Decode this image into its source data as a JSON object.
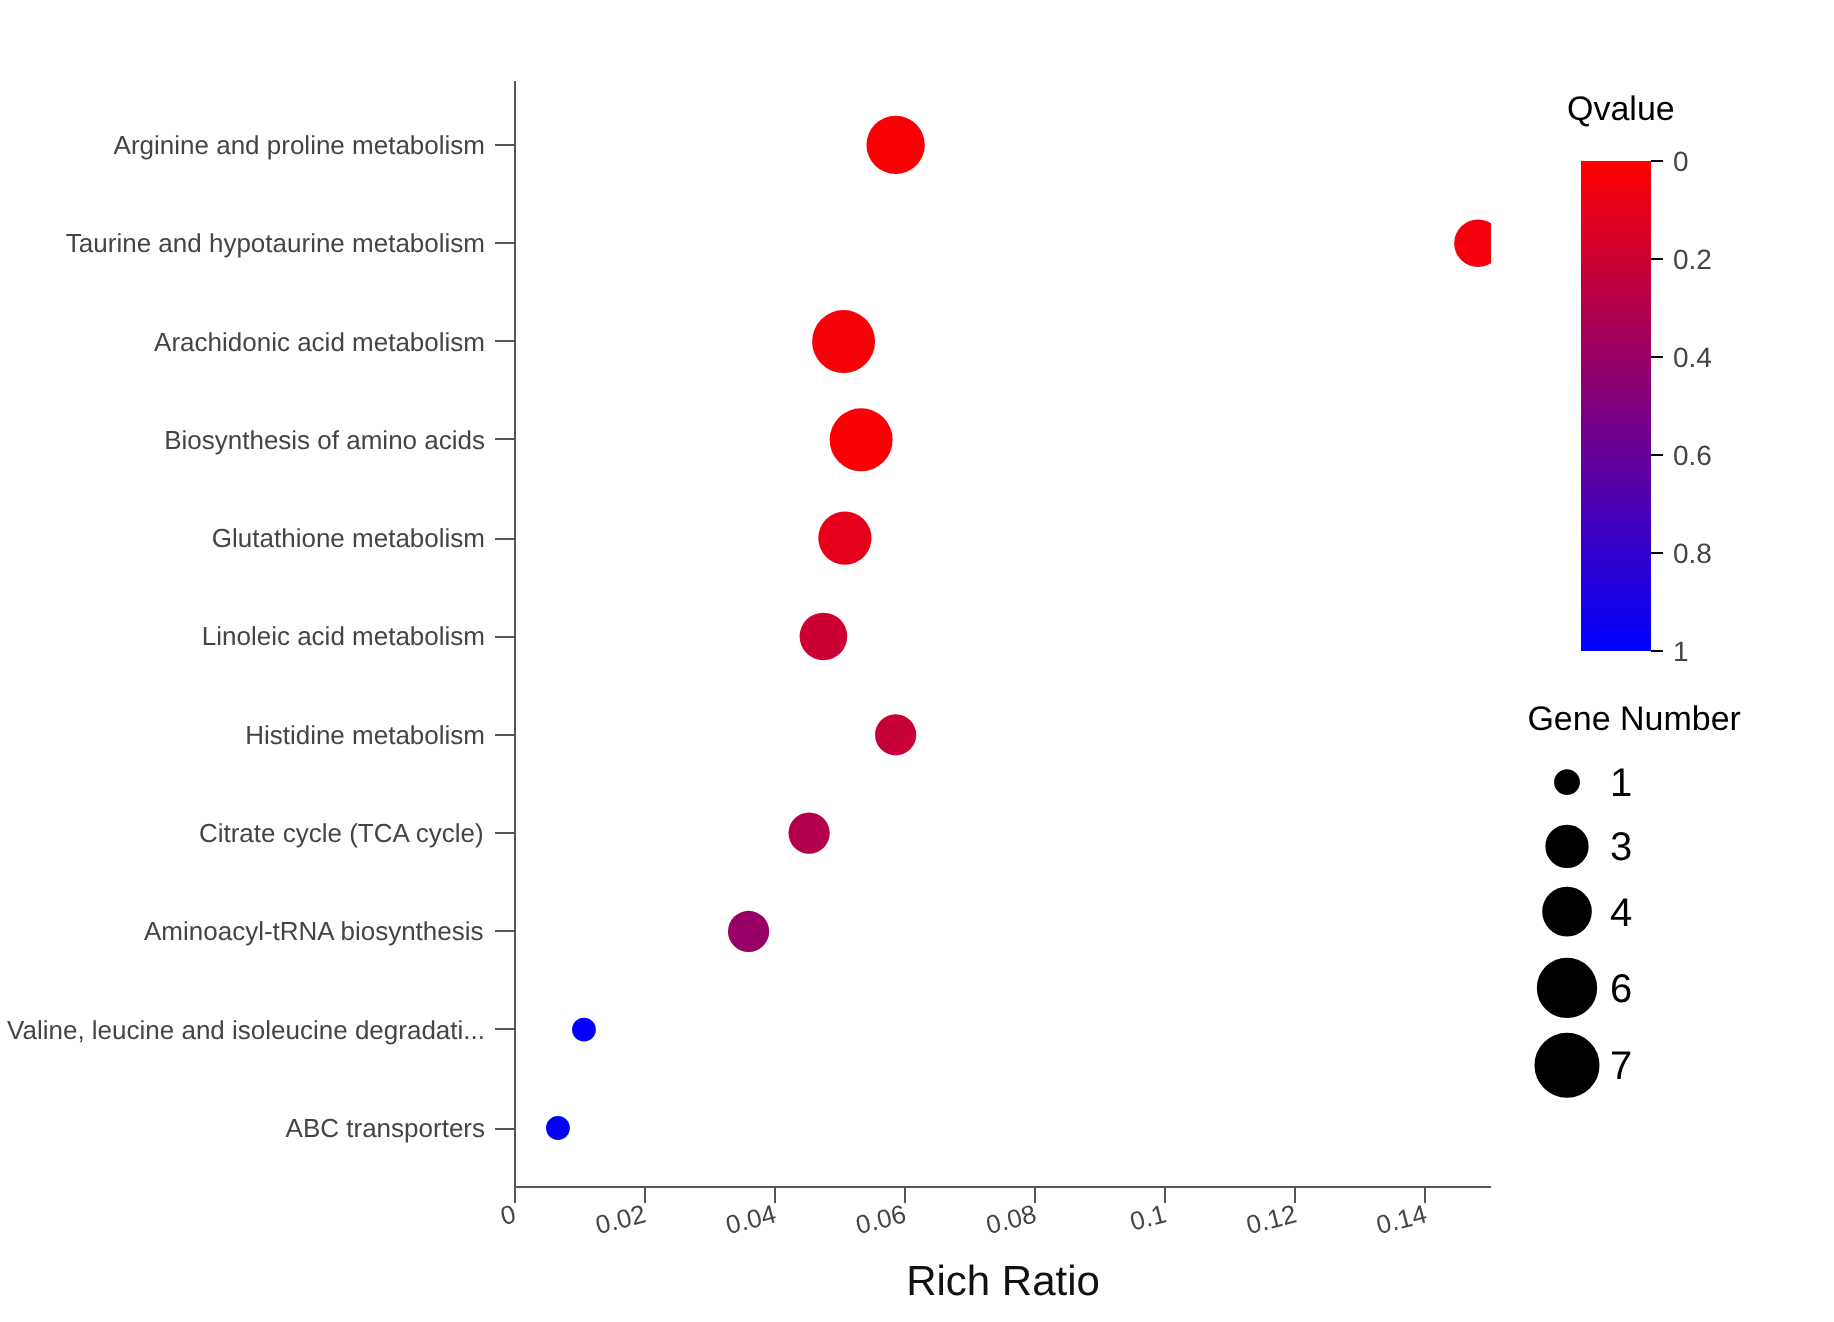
{
  "chart_data": {
    "type": "bubble",
    "xlabel": "Rich Ratio",
    "clabel": "Qvalue",
    "legend_title": "Gene Number",
    "categories": [
      "Arginine and proline metabolism",
      "Taurine and hypotaurine metabolism",
      "Arachidonic acid metabolism",
      "Biosynthesis of amino acids",
      "Glutathione metabolism",
      "Linoleic acid metabolism",
      "Histidine metabolism",
      "Citrate cycle (TCA cycle)",
      "Aminoacyl-tRNA biosynthesis",
      "Valine, leucine and isoleucine degradati...",
      "ABC transporters"
    ],
    "values": [
      0.0585,
      0.148,
      0.0505,
      0.0532,
      0.0507,
      0.0474,
      0.0585,
      0.0452,
      0.0359,
      0.0106,
      0.0066
    ],
    "sizes": [
      6,
      4,
      7,
      7,
      5,
      4,
      3,
      3,
      3,
      1,
      1
    ],
    "cvalues": [
      0.02,
      0.05,
      0.03,
      0.02,
      0.1,
      0.2,
      0.22,
      0.3,
      0.4,
      0.98,
      0.98
    ],
    "size_legend": [
      1,
      3,
      4,
      6,
      7
    ],
    "clim": [
      0,
      1
    ],
    "cticks": [
      0,
      0.2,
      0.4,
      0.6,
      0.8,
      1
    ],
    "xlim": [
      0,
      0.15
    ],
    "xticks": [
      0,
      0.02,
      0.04,
      0.06,
      0.08,
      {
        "value": 0.1,
        "label": "0.1"
      },
      0.12,
      0.14
    ],
    "grid": false,
    "orientation": "horizontal"
  }
}
